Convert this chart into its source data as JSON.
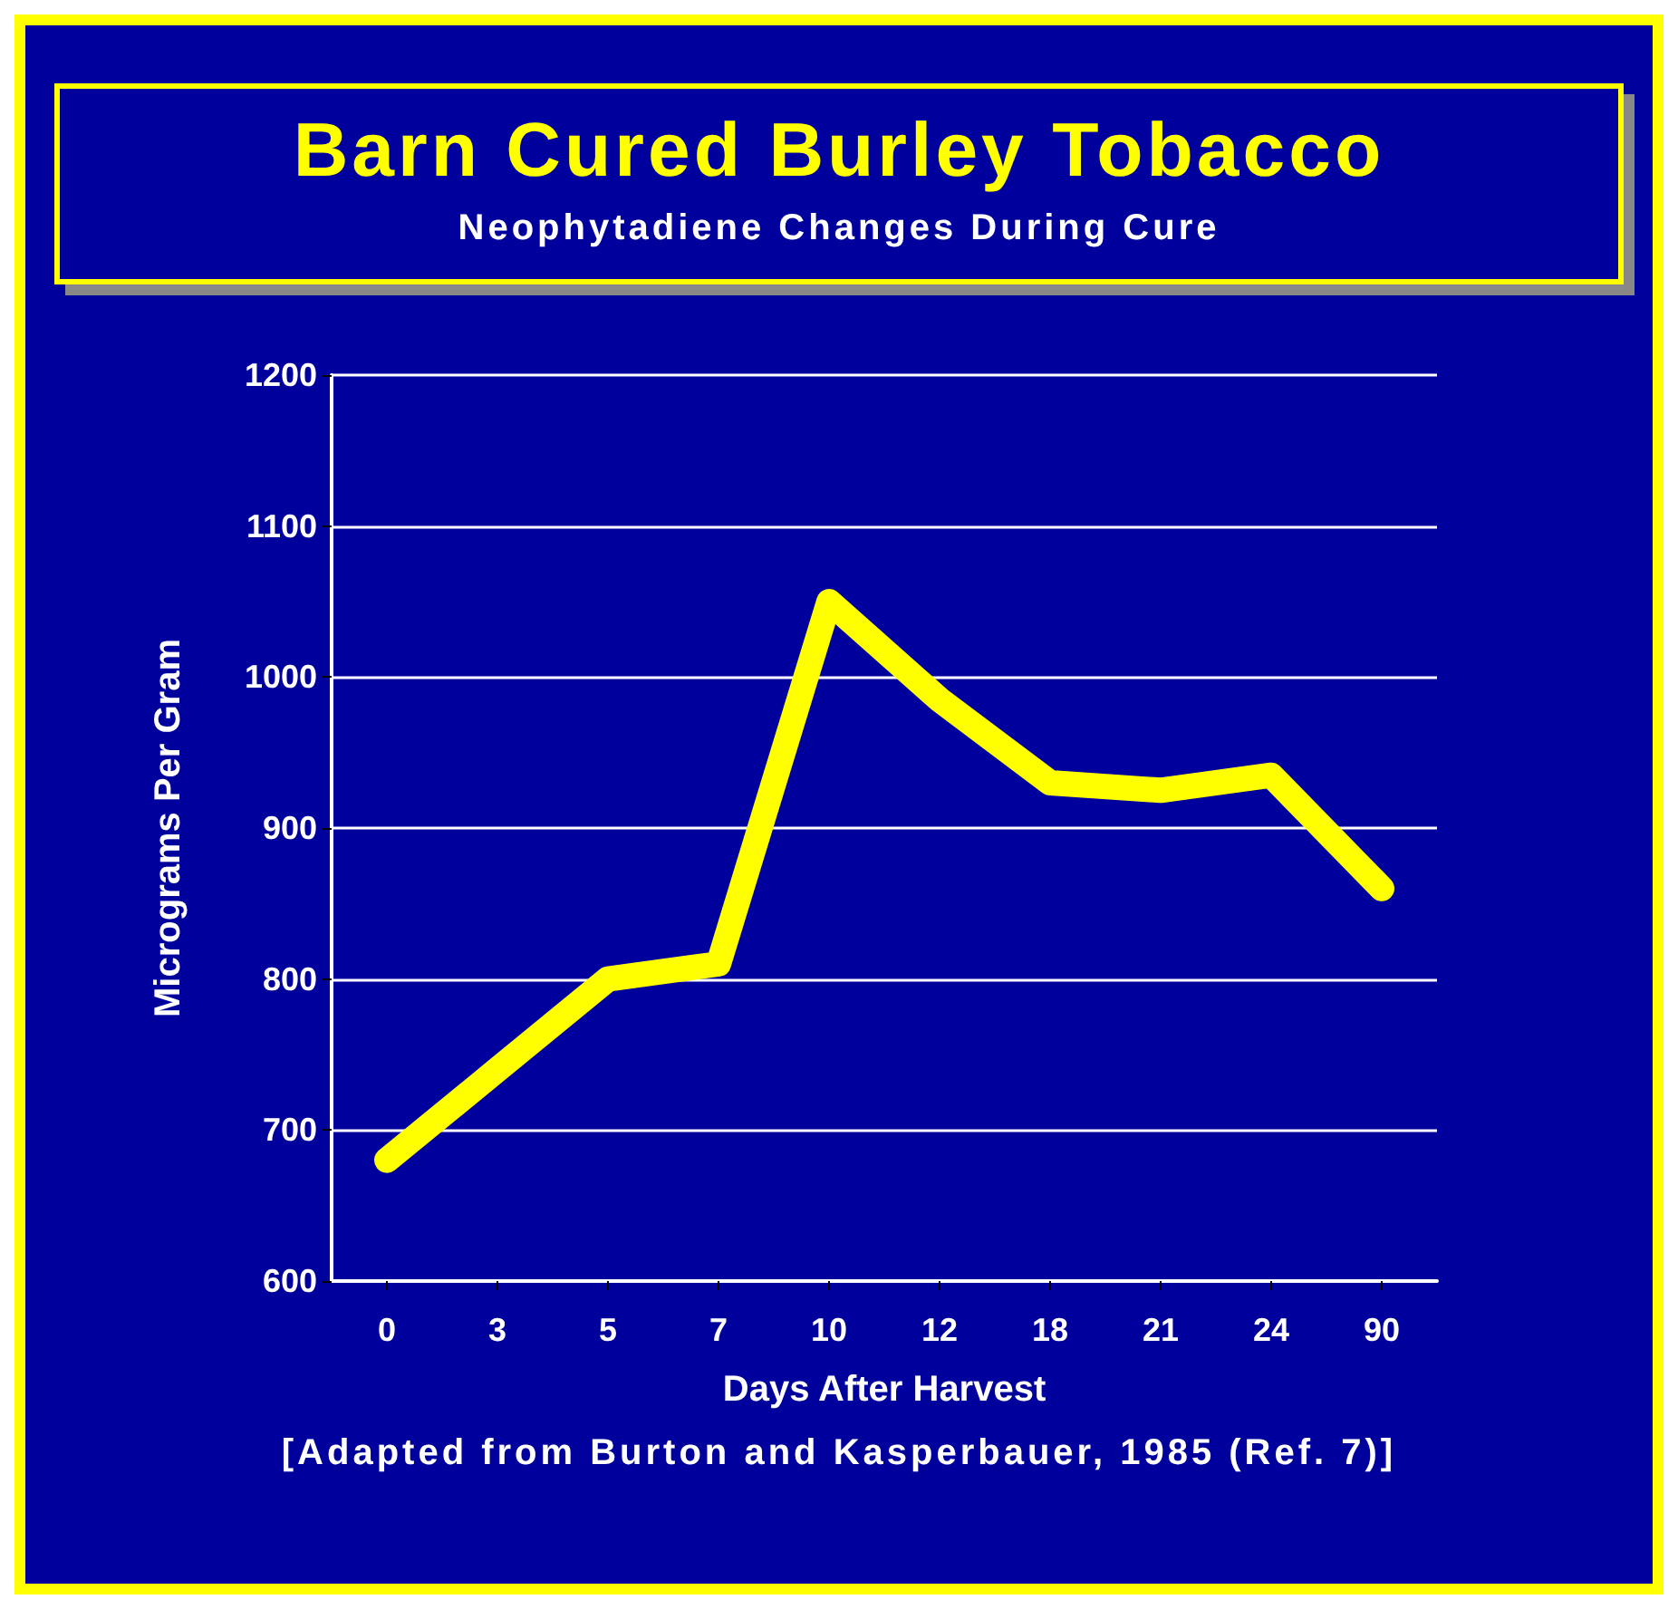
{
  "chart_data": {
    "type": "line",
    "title": "Barn Cured Burley Tobacco",
    "subtitle": "Neophytadiene Changes During Cure",
    "xlabel": "Days After Harvest",
    "ylabel": "Micrograms Per Gram",
    "categories": [
      "0",
      "3",
      "5",
      "7",
      "10",
      "12",
      "18",
      "21",
      "24",
      "90"
    ],
    "series": [
      {
        "color": "#ffff00",
        "values": [
          680,
          740,
          800,
          810,
          1050,
          985,
          930,
          925,
          935,
          860
        ]
      }
    ],
    "ylim": [
      600,
      1200
    ],
    "yticks": [
      600,
      700,
      800,
      900,
      1000,
      1100,
      1200
    ],
    "grid": "y",
    "line_style": "solid",
    "annotations": [
      "[Adapted from Burton and Kasperbauer, 1985 (Ref. 7)]"
    ]
  }
}
